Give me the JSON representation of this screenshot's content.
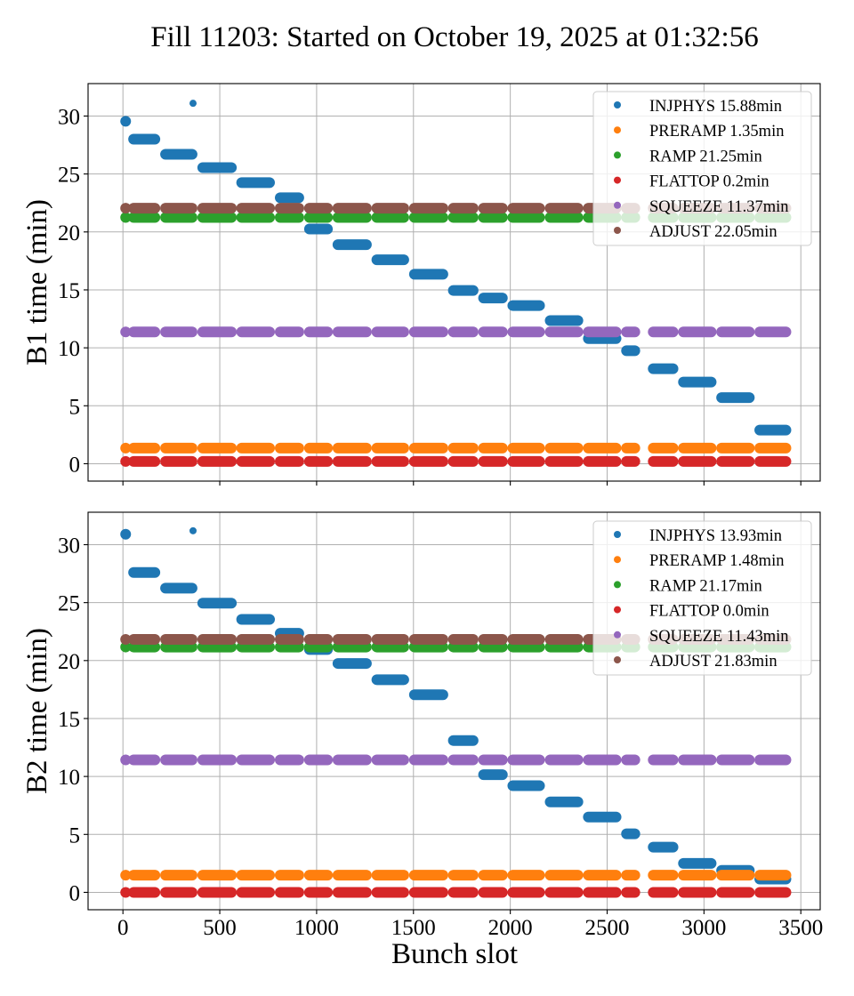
{
  "chart_data": {
    "type": "scatter",
    "title": "Fill 11203: Started on October 19, 2025 at 01:32:56",
    "xlabel": "Bunch slot",
    "xlim": [
      -180,
      3600
    ],
    "xticks": [
      0,
      500,
      1000,
      1500,
      2000,
      2500,
      3000,
      3500
    ],
    "grid": true,
    "legend_placement": "top-right",
    "colors": {
      "INJPHYS": "#1f77b4",
      "PRERAMP": "#ff7f0e",
      "RAMP": "#2ca02c",
      "FLATTOP": "#d62728",
      "SQUEEZE": "#9467bd",
      "ADJUST": "#8c564b"
    },
    "trains": [
      [
        14,
        14
      ],
      [
        55,
        165
      ],
      [
        220,
        357
      ],
      [
        412,
        560
      ],
      [
        613,
        757
      ],
      [
        812,
        908
      ],
      [
        963,
        1056
      ],
      [
        1110,
        1257
      ],
      [
        1311,
        1450
      ],
      [
        1505,
        1652
      ],
      [
        1706,
        1808
      ],
      [
        1862,
        1959
      ],
      [
        2013,
        2151
      ],
      [
        2206,
        2349
      ],
      [
        2403,
        2546
      ],
      [
        2600,
        2643
      ],
      [
        2738,
        2840
      ],
      [
        2894,
        3037
      ],
      [
        3091,
        3234
      ],
      [
        3288,
        3423
      ]
    ],
    "panels": [
      {
        "ylabel": "B1 time (min)",
        "ylim": [
          -1.5,
          32.8
        ],
        "yticks": [
          0,
          5,
          10,
          15,
          20,
          25,
          30
        ],
        "show_xticklabels": false,
        "series": [
          {
            "name": "INJPHYS",
            "legend": "INJPHYS 15.88min",
            "train_values": [
              29.55,
              28.0,
              26.7,
              25.55,
              24.25,
              22.95,
              20.25,
              18.9,
              17.6,
              16.35,
              14.95,
              14.3,
              13.65,
              12.35,
              10.8,
              9.75,
              8.2,
              7.05,
              5.7,
              2.9
            ],
            "extra_points": [
              [
                362,
                31.1
              ]
            ]
          },
          {
            "name": "PRERAMP",
            "legend": "PRERAMP 1.35min",
            "value": 1.35
          },
          {
            "name": "RAMP",
            "legend": "RAMP 21.25min",
            "value": 21.25
          },
          {
            "name": "FLATTOP",
            "legend": "FLATTOP 0.2min",
            "value": 0.2
          },
          {
            "name": "SQUEEZE",
            "legend": "SQUEEZE 11.37min",
            "value": 11.37
          },
          {
            "name": "ADJUST",
            "legend": "ADJUST 22.05min",
            "value": 22.05
          }
        ]
      },
      {
        "ylabel": "B2 time (min)",
        "ylim": [
          -1.5,
          32.8
        ],
        "yticks": [
          0,
          5,
          10,
          15,
          20,
          25,
          30
        ],
        "show_xticklabels": true,
        "series": [
          {
            "name": "INJPHYS",
            "legend": "INJPHYS 13.93min",
            "train_values": [
              30.9,
              27.6,
              26.25,
              24.95,
              23.55,
              22.35,
              20.95,
              19.75,
              18.35,
              17.05,
              13.1,
              10.15,
              9.2,
              7.8,
              6.5,
              5.05,
              3.9,
              2.5,
              1.9,
              1.15
            ],
            "extra_points": [
              [
                362,
                31.2
              ]
            ]
          },
          {
            "name": "PRERAMP",
            "legend": "PRERAMP 1.48min",
            "value": 1.48
          },
          {
            "name": "RAMP",
            "legend": "RAMP 21.17min",
            "value": 21.17
          },
          {
            "name": "FLATTOP",
            "legend": "FLATTOP 0.0min",
            "value": 0.0
          },
          {
            "name": "SQUEEZE",
            "legend": "SQUEEZE 11.43min",
            "value": 11.43
          },
          {
            "name": "ADJUST",
            "legend": "ADJUST 21.83min",
            "value": 21.83
          }
        ]
      }
    ]
  }
}
